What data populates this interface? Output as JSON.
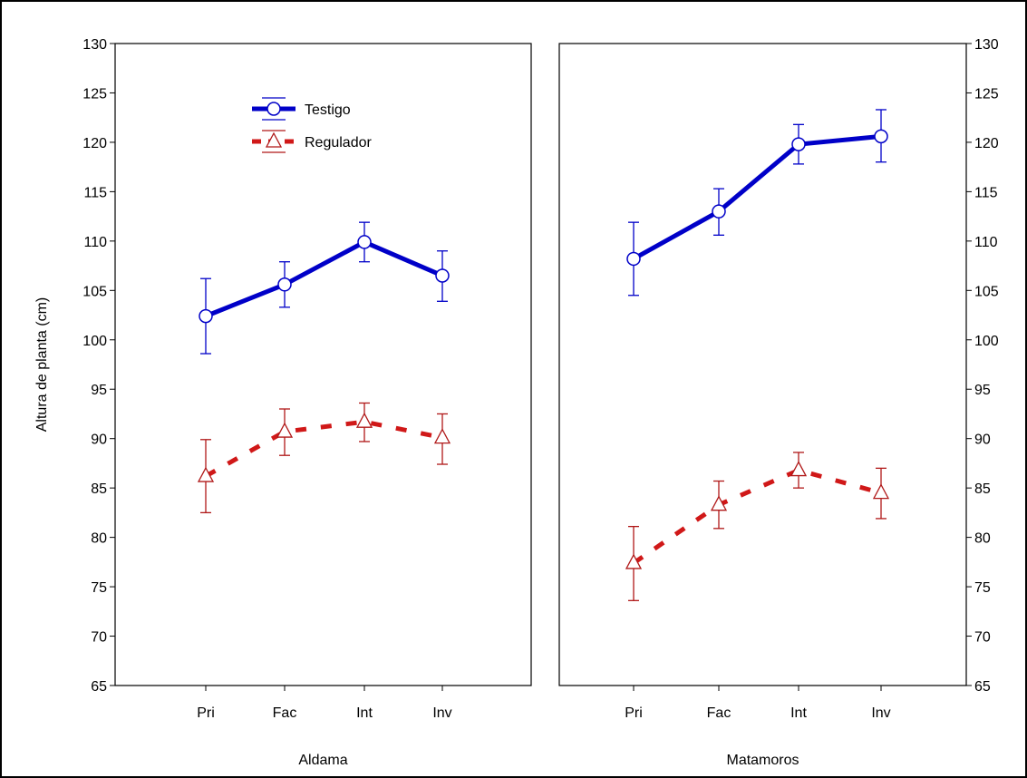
{
  "chart_data": {
    "type": "line",
    "ylabel": "Altura de planta (cm)",
    "ylim": [
      65,
      130
    ],
    "yticks": [
      65,
      70,
      75,
      80,
      85,
      90,
      95,
      100,
      105,
      110,
      115,
      120,
      125,
      130
    ],
    "categories": [
      "Pri",
      "Fac",
      "Int",
      "Inv"
    ],
    "grid": false,
    "legend": {
      "placement": "top-left of left panel",
      "entries": [
        "Testigo",
        "Regulador"
      ]
    },
    "colors": {
      "Testigo": "#0000c8",
      "Regulador": "#d01818",
      "errorbar": "#b01818"
    },
    "panels": [
      {
        "xlabel": "Aldama",
        "series": [
          {
            "name": "Testigo",
            "values": [
              102.4,
              105.6,
              109.9,
              106.5
            ],
            "lower": [
              98.6,
              103.3,
              107.9,
              103.9
            ],
            "upper": [
              106.2,
              107.9,
              111.9,
              109.0
            ]
          },
          {
            "name": "Regulador",
            "values": [
              86.2,
              90.7,
              91.7,
              90.1
            ],
            "lower": [
              82.5,
              88.3,
              89.7,
              87.4
            ],
            "upper": [
              89.9,
              93.0,
              93.6,
              92.5
            ]
          }
        ]
      },
      {
        "xlabel": "Matamoros",
        "series": [
          {
            "name": "Testigo",
            "values": [
              108.2,
              113.0,
              119.8,
              120.6
            ],
            "lower": [
              104.5,
              110.6,
              117.8,
              118.0
            ],
            "upper": [
              111.9,
              115.3,
              121.8,
              123.3
            ]
          },
          {
            "name": "Regulador",
            "values": [
              77.4,
              83.3,
              86.8,
              84.5
            ],
            "lower": [
              73.6,
              80.9,
              85.0,
              81.9
            ],
            "upper": [
              81.1,
              85.7,
              88.6,
              87.0
            ]
          }
        ]
      }
    ]
  }
}
